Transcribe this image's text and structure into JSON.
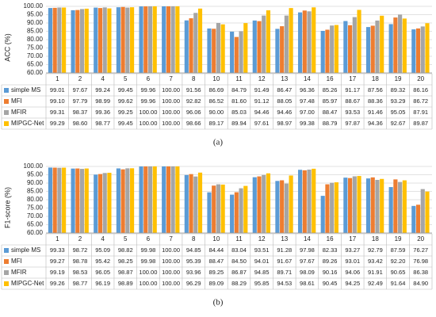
{
  "chart_data": [
    {
      "type": "bar",
      "caption": "(a)",
      "ylabel": "ACC (%)",
      "categories": [
        "1",
        "2",
        "4",
        "5",
        "6",
        "7",
        "8",
        "10",
        "11",
        "12",
        "13",
        "14",
        "16",
        "17",
        "18",
        "19",
        "20"
      ],
      "ylim": [
        60,
        100
      ],
      "yticks": [
        {
          "value": 60,
          "label": "60.00"
        },
        {
          "value": 65,
          "label": "65.00"
        },
        {
          "value": 70,
          "label": "70.00"
        },
        {
          "value": 75,
          "label": "75.00"
        },
        {
          "value": 80,
          "label": "80.00"
        },
        {
          "value": 85,
          "label": "85.00"
        },
        {
          "value": 90,
          "label": "90.00"
        },
        {
          "value": 95,
          "label": "95.00"
        },
        {
          "value": 100,
          "label": "100.00"
        }
      ],
      "grid": true,
      "series": [
        {
          "name": "simple MS",
          "color": "#5b9bd5",
          "values": [
            99.01,
            97.67,
            99.24,
            99.45,
            99.96,
            100,
            91.56,
            86.69,
            84.79,
            91.49,
            86.47,
            96.36,
            85.26,
            91.17,
            87.56,
            89.32,
            86.16
          ],
          "value_labels": [
            "99.01",
            "97.67",
            "99.24",
            "99.45",
            "99.96",
            "100.00",
            "91.56",
            "86.69",
            "84.79",
            "91.49",
            "86.47",
            "96.36",
            "85.26",
            "91.17",
            "87.56",
            "89.32",
            "86.16"
          ]
        },
        {
          "name": "MFI",
          "color": "#ed7d31",
          "values": [
            99.1,
            97.79,
            98.99,
            99.62,
            99.96,
            100,
            92.82,
            86.52,
            81.6,
            91.12,
            88.05,
            97.48,
            85.97,
            88.67,
            88.36,
            93.29,
            86.72
          ],
          "value_labels": [
            "99.10",
            "97.79",
            "98.99",
            "99.62",
            "99.96",
            "100.00",
            "92.82",
            "86.52",
            "81.60",
            "91.12",
            "88.05",
            "97.48",
            "85.97",
            "88.67",
            "88.36",
            "93.29",
            "86.72"
          ]
        },
        {
          "name": "MFIR",
          "color": "#a5a5a5",
          "values": [
            99.31,
            98.37,
            99.36,
            99.25,
            100,
            100,
            96.06,
            90.0,
            85.03,
            94.46,
            94.46,
            97.0,
            88.47,
            93.53,
            91.46,
            95.05,
            87.91
          ],
          "value_labels": [
            "99.31",
            "98.37",
            "99.36",
            "99.25",
            "100.00",
            "100.00",
            "96.06",
            "90.00",
            "85.03",
            "94.46",
            "94.46",
            "97.00",
            "88.47",
            "93.53",
            "91.46",
            "95.05",
            "87.91"
          ]
        },
        {
          "name": "MIPGC-Net",
          "color": "#ffc000",
          "values": [
            99.29,
            98.6,
            98.77,
            99.45,
            100,
            100,
            98.66,
            89.17,
            89.94,
            97.61,
            98.97,
            99.38,
            88.79,
            97.87,
            94.36,
            92.67,
            89.87
          ],
          "value_labels": [
            "99.29",
            "98.60",
            "98.77",
            "99.45",
            "100.00",
            "100.00",
            "98.66",
            "89.17",
            "89.94",
            "97.61",
            "98.97",
            "99.38",
            "88.79",
            "97.87",
            "94.36",
            "92.67",
            "89.87"
          ]
        }
      ]
    },
    {
      "type": "bar",
      "caption": "(b)",
      "ylabel": "F1-score (%)",
      "categories": [
        "1",
        "2",
        "4",
        "5",
        "6",
        "7",
        "8",
        "10",
        "11",
        "12",
        "13",
        "14",
        "16",
        "17",
        "18",
        "19",
        "20"
      ],
      "ylim": [
        60,
        100
      ],
      "yticks": [
        {
          "value": 60,
          "label": "60.00"
        },
        {
          "value": 65,
          "label": "65.00"
        },
        {
          "value": 70,
          "label": "70.00"
        },
        {
          "value": 75,
          "label": "75.00"
        },
        {
          "value": 80,
          "label": "80.00"
        },
        {
          "value": 85,
          "label": "85.00"
        },
        {
          "value": 90,
          "label": "90.00"
        },
        {
          "value": 95,
          "label": "95.00"
        },
        {
          "value": 100,
          "label": "100.00"
        }
      ],
      "grid": true,
      "series": [
        {
          "name": "simple MS",
          "color": "#5b9bd5",
          "values": [
            99.33,
            98.72,
            95.09,
            98.82,
            99.98,
            100,
            94.85,
            84.44,
            83.04,
            93.51,
            91.28,
            97.98,
            82.33,
            93.27,
            92.79,
            87.59,
            76.27
          ],
          "value_labels": [
            "99.33",
            "98.72",
            "95.09",
            "98.82",
            "99.98",
            "100.00",
            "94.85",
            "84.44",
            "83.04",
            "93.51",
            "91.28",
            "97.98",
            "82.33",
            "93.27",
            "92.79",
            "87.59",
            "76.27"
          ]
        },
        {
          "name": "MFI",
          "color": "#ed7d31",
          "values": [
            99.27,
            98.78,
            95.42,
            98.25,
            99.98,
            100,
            95.39,
            88.47,
            84.5,
            94.01,
            91.67,
            97.67,
            89.26,
            93.01,
            93.42,
            92.2,
            76.98
          ],
          "value_labels": [
            "99.27",
            "98.78",
            "95.42",
            "98.25",
            "99.98",
            "100.00",
            "95.39",
            "88.47",
            "84.50",
            "94.01",
            "91.67",
            "97.67",
            "89.26",
            "93.01",
            "93.42",
            "92.20",
            "76.98"
          ]
        },
        {
          "name": "MFIR",
          "color": "#a5a5a5",
          "values": [
            99.19,
            98.53,
            96.05,
            98.87,
            100,
            100,
            93.96,
            89.25,
            86.87,
            94.85,
            89.71,
            98.09,
            90.16,
            94.06,
            91.91,
            90.65,
            86.38
          ],
          "value_labels": [
            "99.19",
            "98.53",
            "96.05",
            "98.87",
            "100.00",
            "100.00",
            "93.96",
            "89.25",
            "86.87",
            "94.85",
            "89.71",
            "98.09",
            "90.16",
            "94.06",
            "91.91",
            "90.65",
            "86.38"
          ]
        },
        {
          "name": "MIPGC-Net",
          "color": "#ffc000",
          "values": [
            99.26,
            98.77,
            96.19,
            98.89,
            100,
            100,
            96.29,
            89.09,
            88.29,
            95.85,
            94.53,
            98.61,
            90.45,
            94.25,
            92.49,
            91.64,
            84.9
          ],
          "value_labels": [
            "99.26",
            "98.77",
            "96.19",
            "98.89",
            "100.00",
            "100.00",
            "96.29",
            "89.09",
            "88.29",
            "95.85",
            "94.53",
            "98.61",
            "90.45",
            "94.25",
            "92.49",
            "91.64",
            "84.90"
          ]
        }
      ]
    }
  ]
}
